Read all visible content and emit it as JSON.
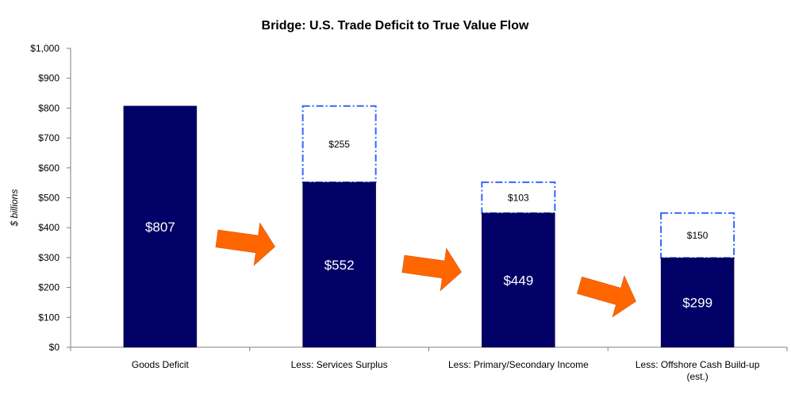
{
  "colors": {
    "bar": "#000066",
    "bridge_outline": "#3366ff",
    "arrow": "#ff6600",
    "axis": "#808080"
  },
  "chart_data": {
    "type": "bar",
    "title": "Bridge: U.S. Trade Deficit to True Value Flow",
    "ylabel": "$ billions",
    "xlabel": "",
    "ylim": [
      0,
      1000
    ],
    "yticks": [
      0,
      100,
      200,
      300,
      400,
      500,
      600,
      700,
      800,
      900,
      1000
    ],
    "ytick_labels": [
      "$0",
      "$100",
      "$200",
      "$300",
      "$400",
      "$500",
      "$600",
      "$700",
      "$800",
      "$900",
      "$1,000"
    ],
    "categories": [
      [
        "Goods Deficit"
      ],
      [
        "Less: Services Surplus"
      ],
      [
        "Less: Primary/Secondary Income"
      ],
      [
        "Less: Offshore Cash Build-up",
        "(est.)"
      ]
    ],
    "values": [
      807,
      552,
      449,
      299
    ],
    "value_labels": [
      "$807",
      "$552",
      "$449",
      "$299"
    ],
    "deductions": [
      null,
      255,
      103,
      150
    ],
    "deduction_labels": [
      null,
      "$255",
      "$103",
      "$150"
    ],
    "grid": false,
    "legend": "none"
  }
}
